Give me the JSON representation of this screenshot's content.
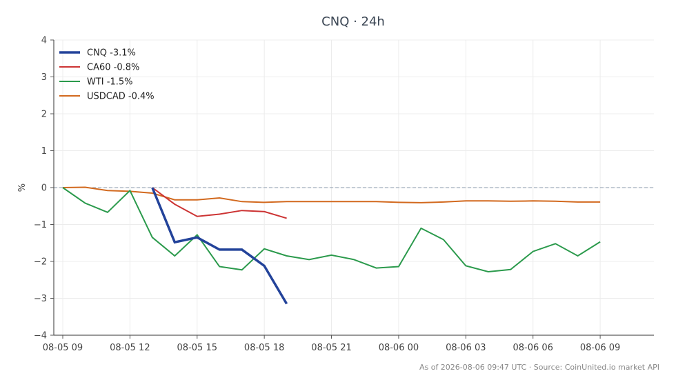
{
  "chart_data": {
    "type": "line",
    "title": "CNQ · 24h",
    "xlabel": "",
    "ylabel": "%",
    "ylim": [
      -4,
      4
    ],
    "yticks": [
      4,
      3,
      2,
      1,
      0,
      -1,
      -2,
      -3,
      -4
    ],
    "xlim": [
      -0.4,
      26.4
    ],
    "xticks": [
      {
        "x": 0,
        "label": "08-05 09"
      },
      {
        "x": 3,
        "label": "08-05 12"
      },
      {
        "x": 6,
        "label": "08-05 15"
      },
      {
        "x": 9,
        "label": "08-05 18"
      },
      {
        "x": 12,
        "label": "08-05 21"
      },
      {
        "x": 15,
        "label": "08-06 00"
      },
      {
        "x": 18,
        "label": "08-06 03"
      },
      {
        "x": 21,
        "label": "08-06 06"
      },
      {
        "x": 24,
        "label": "08-06 09"
      }
    ],
    "grid": true,
    "zero_line": true,
    "legend_position": "top-left",
    "series": [
      {
        "name": "CNQ -3.1%",
        "color": "#23439a",
        "width": 3.5,
        "x": [
          4,
          5,
          6,
          7,
          8,
          9,
          10
        ],
        "values": [
          0.0,
          -1.48,
          -1.35,
          -1.68,
          -1.68,
          -2.12,
          -3.15
        ]
      },
      {
        "name": "CA60 -0.8%",
        "color": "#cc3333",
        "width": 2,
        "x": [
          4,
          5,
          6,
          7,
          8,
          9,
          10
        ],
        "values": [
          0.0,
          -0.45,
          -0.78,
          -0.72,
          -0.62,
          -0.65,
          -0.83
        ]
      },
      {
        "name": "WTI -1.5%",
        "color": "#2b9a4c",
        "width": 2,
        "x": [
          0,
          1,
          2,
          3,
          4,
          5,
          6,
          7,
          8,
          9,
          10,
          11,
          12,
          13,
          14,
          15,
          16,
          17,
          18,
          19,
          20,
          21,
          22,
          23,
          24
        ],
        "values": [
          0.0,
          -0.42,
          -0.67,
          -0.08,
          -1.35,
          -1.85,
          -1.28,
          -2.14,
          -2.23,
          -1.66,
          -1.85,
          -1.95,
          -1.83,
          -1.95,
          -2.18,
          -2.14,
          -1.1,
          -1.41,
          -2.12,
          -2.28,
          -2.22,
          -1.73,
          -1.52,
          -1.85,
          -1.47
        ]
      },
      {
        "name": "USDCAD -0.4%",
        "color": "#d2691e",
        "width": 2,
        "x": [
          0,
          1,
          2,
          3,
          4,
          5,
          6,
          7,
          8,
          9,
          10,
          11,
          12,
          13,
          14,
          15,
          16,
          17,
          18,
          19,
          20,
          21,
          22,
          23,
          24
        ],
        "values": [
          0.0,
          0.01,
          -0.08,
          -0.1,
          -0.15,
          -0.33,
          -0.33,
          -0.28,
          -0.38,
          -0.4,
          -0.38,
          -0.38,
          -0.38,
          -0.38,
          -0.38,
          -0.4,
          -0.41,
          -0.39,
          -0.36,
          -0.36,
          -0.37,
          -0.36,
          -0.37,
          -0.39,
          -0.39
        ]
      }
    ]
  },
  "footer": "As of 2026-08-06 09:47 UTC · Source: CoinUnited.io market API"
}
